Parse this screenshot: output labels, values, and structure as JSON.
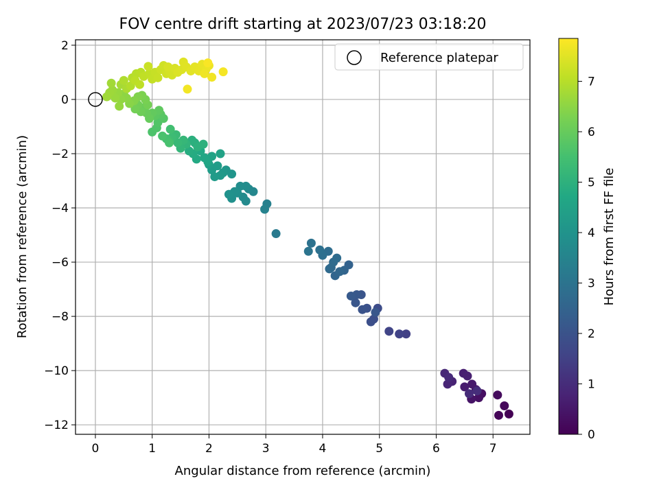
{
  "chart_data": {
    "type": "scatter",
    "title": "FOV centre drift starting at 2023/07/23 03:18:20",
    "xlabel": "Angular distance from reference (arcmin)",
    "ylabel": "Rotation from reference (arcmin)",
    "xlim": [
      -0.35,
      7.65
    ],
    "ylim": [
      -12.35,
      2.2
    ],
    "xticks": [
      0,
      1,
      2,
      3,
      4,
      5,
      6,
      7
    ],
    "yticks": [
      2,
      0,
      -2,
      -4,
      -6,
      -8,
      -10,
      -12
    ],
    "grid": true,
    "legend": {
      "placement": "top-right",
      "entries": [
        "Reference platepar"
      ]
    },
    "reference_point": {
      "x": 0,
      "y": 0
    },
    "colorbar": {
      "label": "Hours from first FF file",
      "colormap": "viridis",
      "range": [
        0,
        7.85
      ],
      "ticks": [
        0,
        1,
        2,
        3,
        4,
        5,
        6,
        7
      ]
    },
    "points": [
      {
        "x": 7.28,
        "y": -11.6,
        "h": 0.0
      },
      {
        "x": 7.1,
        "y": -11.65,
        "h": 0.08
      },
      {
        "x": 7.2,
        "y": -11.3,
        "h": 0.15
      },
      {
        "x": 7.08,
        "y": -10.9,
        "h": 0.22
      },
      {
        "x": 6.8,
        "y": -10.85,
        "h": 0.3
      },
      {
        "x": 6.75,
        "y": -11.0,
        "h": 0.36
      },
      {
        "x": 6.62,
        "y": -11.05,
        "h": 0.42
      },
      {
        "x": 6.7,
        "y": -10.7,
        "h": 0.48
      },
      {
        "x": 6.63,
        "y": -10.5,
        "h": 0.55
      },
      {
        "x": 6.5,
        "y": -10.6,
        "h": 0.6
      },
      {
        "x": 6.48,
        "y": -10.1,
        "h": 0.66
      },
      {
        "x": 6.55,
        "y": -10.2,
        "h": 0.7
      },
      {
        "x": 6.28,
        "y": -10.4,
        "h": 0.76
      },
      {
        "x": 6.2,
        "y": -10.5,
        "h": 0.82
      },
      {
        "x": 6.15,
        "y": -10.1,
        "h": 0.88
      },
      {
        "x": 6.22,
        "y": -10.25,
        "h": 0.94
      },
      {
        "x": 6.58,
        "y": -10.85,
        "h": 0.98
      },
      {
        "x": 6.72,
        "y": -10.75,
        "h": 1.02
      },
      {
        "x": 5.47,
        "y": -8.65,
        "h": 1.5
      },
      {
        "x": 5.35,
        "y": -8.65,
        "h": 1.55
      },
      {
        "x": 5.17,
        "y": -8.55,
        "h": 1.6
      },
      {
        "x": 4.97,
        "y": -7.7,
        "h": 1.8
      },
      {
        "x": 4.9,
        "y": -8.1,
        "h": 1.85
      },
      {
        "x": 4.85,
        "y": -8.2,
        "h": 1.9
      },
      {
        "x": 4.78,
        "y": -7.7,
        "h": 1.95
      },
      {
        "x": 4.7,
        "y": -7.75,
        "h": 2.0
      },
      {
        "x": 4.68,
        "y": -7.2,
        "h": 2.05
      },
      {
        "x": 4.58,
        "y": -7.5,
        "h": 2.1
      },
      {
        "x": 4.6,
        "y": -7.2,
        "h": 2.15
      },
      {
        "x": 4.5,
        "y": -7.25,
        "h": 2.2
      },
      {
        "x": 4.93,
        "y": -7.85,
        "h": 2.12
      },
      {
        "x": 4.46,
        "y": -6.1,
        "h": 2.45
      },
      {
        "x": 4.38,
        "y": -6.3,
        "h": 2.5
      },
      {
        "x": 4.22,
        "y": -6.5,
        "h": 2.55
      },
      {
        "x": 4.3,
        "y": -6.35,
        "h": 2.6
      },
      {
        "x": 4.15,
        "y": -6.2,
        "h": 2.65
      },
      {
        "x": 4.12,
        "y": -6.25,
        "h": 2.7
      },
      {
        "x": 4.19,
        "y": -6.0,
        "h": 2.72
      },
      {
        "x": 4.25,
        "y": -5.85,
        "h": 2.75
      },
      {
        "x": 4.1,
        "y": -5.6,
        "h": 2.8
      },
      {
        "x": 4.0,
        "y": -5.75,
        "h": 2.85
      },
      {
        "x": 3.95,
        "y": -5.55,
        "h": 2.9
      },
      {
        "x": 3.8,
        "y": -5.3,
        "h": 2.95
      },
      {
        "x": 3.75,
        "y": -5.6,
        "h": 3.0
      },
      {
        "x": 3.18,
        "y": -4.95,
        "h": 3.2
      },
      {
        "x": 3.02,
        "y": -3.85,
        "h": 3.4
      },
      {
        "x": 2.98,
        "y": -4.05,
        "h": 3.45
      },
      {
        "x": 2.78,
        "y": -3.4,
        "h": 3.6
      },
      {
        "x": 2.7,
        "y": -3.3,
        "h": 3.65
      },
      {
        "x": 2.65,
        "y": -3.75,
        "h": 3.7
      },
      {
        "x": 2.6,
        "y": -3.6,
        "h": 3.75
      },
      {
        "x": 2.65,
        "y": -3.2,
        "h": 3.78
      },
      {
        "x": 2.55,
        "y": -3.2,
        "h": 3.8
      },
      {
        "x": 2.5,
        "y": -3.45,
        "h": 3.85
      },
      {
        "x": 2.45,
        "y": -3.4,
        "h": 3.88
      },
      {
        "x": 2.4,
        "y": -3.65,
        "h": 3.9
      },
      {
        "x": 2.35,
        "y": -3.5,
        "h": 3.95
      },
      {
        "x": 2.4,
        "y": -2.75,
        "h": 4.05
      },
      {
        "x": 2.3,
        "y": -2.6,
        "h": 4.1
      },
      {
        "x": 2.25,
        "y": -2.7,
        "h": 4.15
      },
      {
        "x": 2.2,
        "y": -2.8,
        "h": 4.2
      },
      {
        "x": 2.1,
        "y": -2.85,
        "h": 4.25
      },
      {
        "x": 2.05,
        "y": -2.6,
        "h": 4.3
      },
      {
        "x": 2.15,
        "y": -2.45,
        "h": 4.35
      },
      {
        "x": 2.0,
        "y": -2.4,
        "h": 4.4
      },
      {
        "x": 2.2,
        "y": -2.0,
        "h": 4.5
      },
      {
        "x": 2.05,
        "y": -2.1,
        "h": 4.55
      },
      {
        "x": 1.98,
        "y": -2.3,
        "h": 4.6
      },
      {
        "x": 1.92,
        "y": -2.15,
        "h": 4.65
      },
      {
        "x": 1.85,
        "y": -1.9,
        "h": 4.7
      },
      {
        "x": 1.78,
        "y": -2.2,
        "h": 4.75
      },
      {
        "x": 1.72,
        "y": -2.0,
        "h": 4.8
      },
      {
        "x": 1.65,
        "y": -1.9,
        "h": 4.85
      },
      {
        "x": 1.75,
        "y": -1.6,
        "h": 4.9
      },
      {
        "x": 1.7,
        "y": -1.5,
        "h": 4.95
      },
      {
        "x": 1.8,
        "y": -1.75,
        "h": 4.98
      },
      {
        "x": 1.9,
        "y": -1.65,
        "h": 5.0
      },
      {
        "x": 1.6,
        "y": -1.65,
        "h": 5.1
      },
      {
        "x": 1.5,
        "y": -1.8,
        "h": 5.15
      },
      {
        "x": 1.55,
        "y": -1.5,
        "h": 5.2
      },
      {
        "x": 1.45,
        "y": -1.6,
        "h": 5.25
      },
      {
        "x": 1.42,
        "y": -1.3,
        "h": 5.3
      },
      {
        "x": 1.35,
        "y": -1.4,
        "h": 5.35
      },
      {
        "x": 1.3,
        "y": -1.5,
        "h": 5.4
      },
      {
        "x": 1.32,
        "y": -1.1,
        "h": 5.45
      },
      {
        "x": 1.25,
        "y": -1.45,
        "h": 5.5
      },
      {
        "x": 1.3,
        "y": -1.6,
        "h": 5.55
      },
      {
        "x": 1.18,
        "y": -1.35,
        "h": 5.58
      },
      {
        "x": 1.0,
        "y": -1.2,
        "h": 5.62
      },
      {
        "x": 1.08,
        "y": -1.05,
        "h": 5.65
      },
      {
        "x": 1.1,
        "y": -0.85,
        "h": 5.7
      },
      {
        "x": 1.2,
        "y": -0.7,
        "h": 5.75
      },
      {
        "x": 1.15,
        "y": -0.55,
        "h": 5.8
      },
      {
        "x": 1.05,
        "y": -0.6,
        "h": 5.85
      },
      {
        "x": 1.12,
        "y": -0.4,
        "h": 5.9
      },
      {
        "x": 1.0,
        "y": -0.5,
        "h": 5.95
      },
      {
        "x": 0.95,
        "y": -0.7,
        "h": 6.0
      },
      {
        "x": 0.9,
        "y": -0.5,
        "h": 6.03
      },
      {
        "x": 0.85,
        "y": -0.3,
        "h": 6.05
      },
      {
        "x": 0.8,
        "y": -0.45,
        "h": 6.1
      },
      {
        "x": 0.75,
        "y": -0.2,
        "h": 6.15
      },
      {
        "x": 0.7,
        "y": -0.35,
        "h": 6.18
      },
      {
        "x": 0.92,
        "y": -0.2,
        "h": 6.2
      },
      {
        "x": 0.88,
        "y": 0.0,
        "h": 6.25
      },
      {
        "x": 0.82,
        "y": 0.15,
        "h": 6.3
      },
      {
        "x": 0.75,
        "y": 0.1,
        "h": 6.35
      },
      {
        "x": 0.68,
        "y": -0.05,
        "h": 6.4
      },
      {
        "x": 0.6,
        "y": -0.15,
        "h": 6.45
      },
      {
        "x": 0.55,
        "y": 0.05,
        "h": 6.5
      },
      {
        "x": 0.5,
        "y": 0.2,
        "h": 6.52
      },
      {
        "x": 0.45,
        "y": 0.0,
        "h": 6.55
      },
      {
        "x": 0.42,
        "y": -0.25,
        "h": 6.6
      },
      {
        "x": 0.4,
        "y": 0.25,
        "h": 6.62
      },
      {
        "x": 0.35,
        "y": 0.05,
        "h": 6.65
      },
      {
        "x": 0.3,
        "y": 0.35,
        "h": 6.68
      },
      {
        "x": 0.25,
        "y": 0.25,
        "h": 6.7
      },
      {
        "x": 0.2,
        "y": 0.1,
        "h": 6.72
      },
      {
        "x": 0.28,
        "y": 0.6,
        "h": 6.75
      },
      {
        "x": 0.45,
        "y": 0.55,
        "h": 6.8
      },
      {
        "x": 0.55,
        "y": 0.4,
        "h": 6.85
      },
      {
        "x": 0.5,
        "y": 0.7,
        "h": 6.9
      },
      {
        "x": 0.62,
        "y": 0.5,
        "h": 6.95
      },
      {
        "x": 0.65,
        "y": 0.8,
        "h": 6.97
      },
      {
        "x": 0.72,
        "y": 0.95,
        "h": 7.0
      },
      {
        "x": 0.8,
        "y": 1.0,
        "h": 7.03
      },
      {
        "x": 0.7,
        "y": 0.7,
        "h": 7.05
      },
      {
        "x": 0.78,
        "y": 0.55,
        "h": 7.08
      },
      {
        "x": 0.85,
        "y": 0.85,
        "h": 7.1
      },
      {
        "x": 0.95,
        "y": 0.95,
        "h": 7.12
      },
      {
        "x": 1.0,
        "y": 0.75,
        "h": 7.15
      },
      {
        "x": 1.05,
        "y": 1.0,
        "h": 7.18
      },
      {
        "x": 1.1,
        "y": 0.8,
        "h": 7.2
      },
      {
        "x": 0.93,
        "y": 1.22,
        "h": 7.22
      },
      {
        "x": 1.15,
        "y": 1.1,
        "h": 7.25
      },
      {
        "x": 1.2,
        "y": 1.25,
        "h": 7.28
      },
      {
        "x": 1.25,
        "y": 0.95,
        "h": 7.3
      },
      {
        "x": 1.3,
        "y": 1.05,
        "h": 7.33
      },
      {
        "x": 1.35,
        "y": 0.9,
        "h": 7.35
      },
      {
        "x": 1.28,
        "y": 1.2,
        "h": 7.38
      },
      {
        "x": 1.4,
        "y": 1.15,
        "h": 7.4
      },
      {
        "x": 1.45,
        "y": 1.0,
        "h": 7.43
      },
      {
        "x": 1.52,
        "y": 1.1,
        "h": 7.45
      },
      {
        "x": 1.55,
        "y": 1.38,
        "h": 7.48
      },
      {
        "x": 1.6,
        "y": 1.2,
        "h": 7.5
      },
      {
        "x": 1.68,
        "y": 1.05,
        "h": 7.52
      },
      {
        "x": 1.75,
        "y": 1.2,
        "h": 7.55
      },
      {
        "x": 1.82,
        "y": 1.05,
        "h": 7.58
      },
      {
        "x": 1.88,
        "y": 1.3,
        "h": 7.6
      },
      {
        "x": 1.95,
        "y": 1.12,
        "h": 7.62
      },
      {
        "x": 2.0,
        "y": 1.25,
        "h": 7.65
      },
      {
        "x": 1.92,
        "y": 0.95,
        "h": 7.68
      },
      {
        "x": 2.05,
        "y": 0.82,
        "h": 7.7
      },
      {
        "x": 1.62,
        "y": 0.38,
        "h": 7.72
      },
      {
        "x": 2.25,
        "y": 1.02,
        "h": 7.75
      },
      {
        "x": 1.98,
        "y": 1.35,
        "h": 7.8
      }
    ]
  }
}
